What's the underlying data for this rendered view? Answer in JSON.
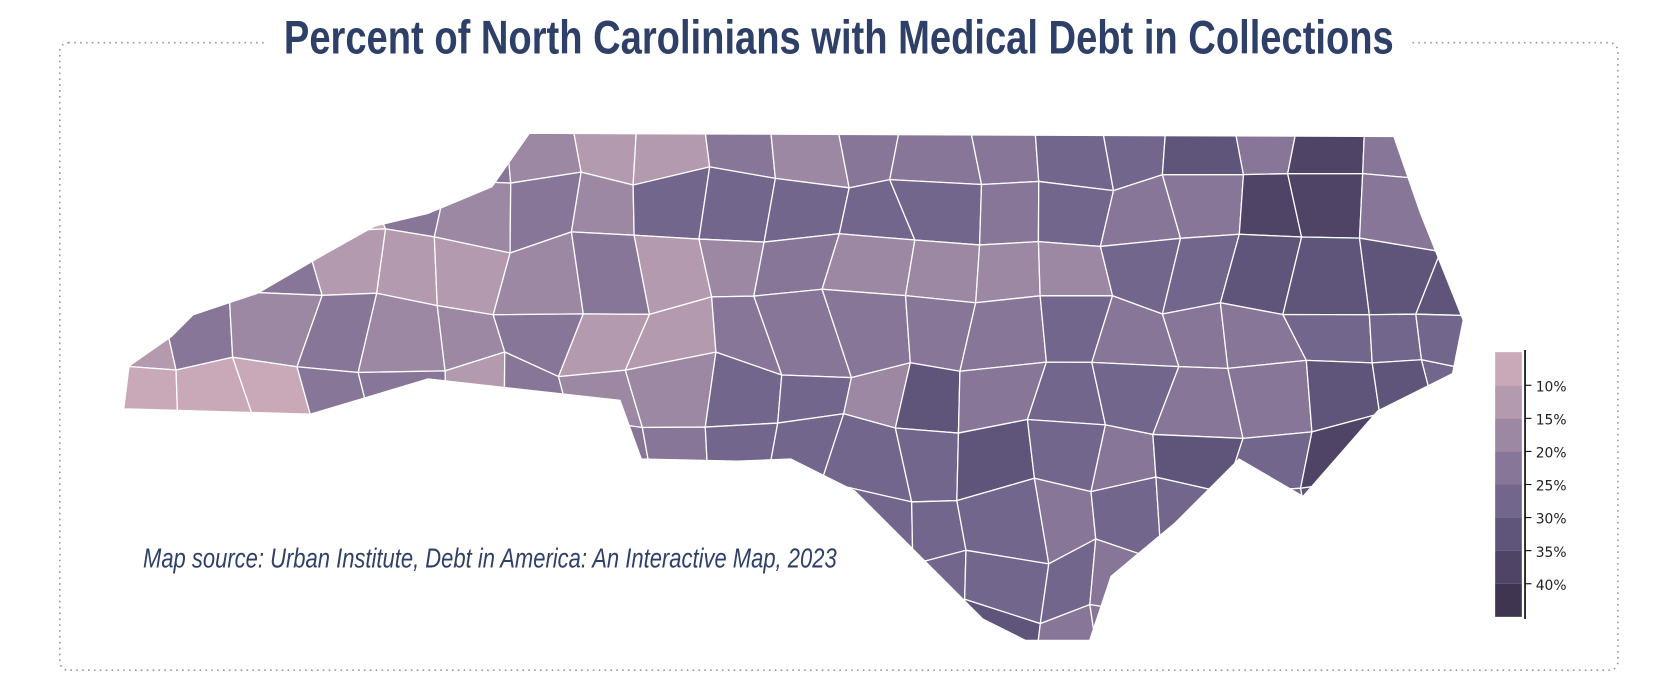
{
  "title": "Percent of North Carolinians with Medical Debt in Collections",
  "source": "Map source: Urban Institute, Debt in America: An Interactive Map, 2023",
  "legend": {
    "labels": [
      "10%",
      "15%",
      "20%",
      "25%",
      "30%",
      "35%",
      "40%"
    ],
    "colors": [
      "#c9a9b8",
      "#b49aae",
      "#9d88a4",
      "#887699",
      "#73668c",
      "#5f547a",
      "#4f4466",
      "#3f3550"
    ]
  }
}
